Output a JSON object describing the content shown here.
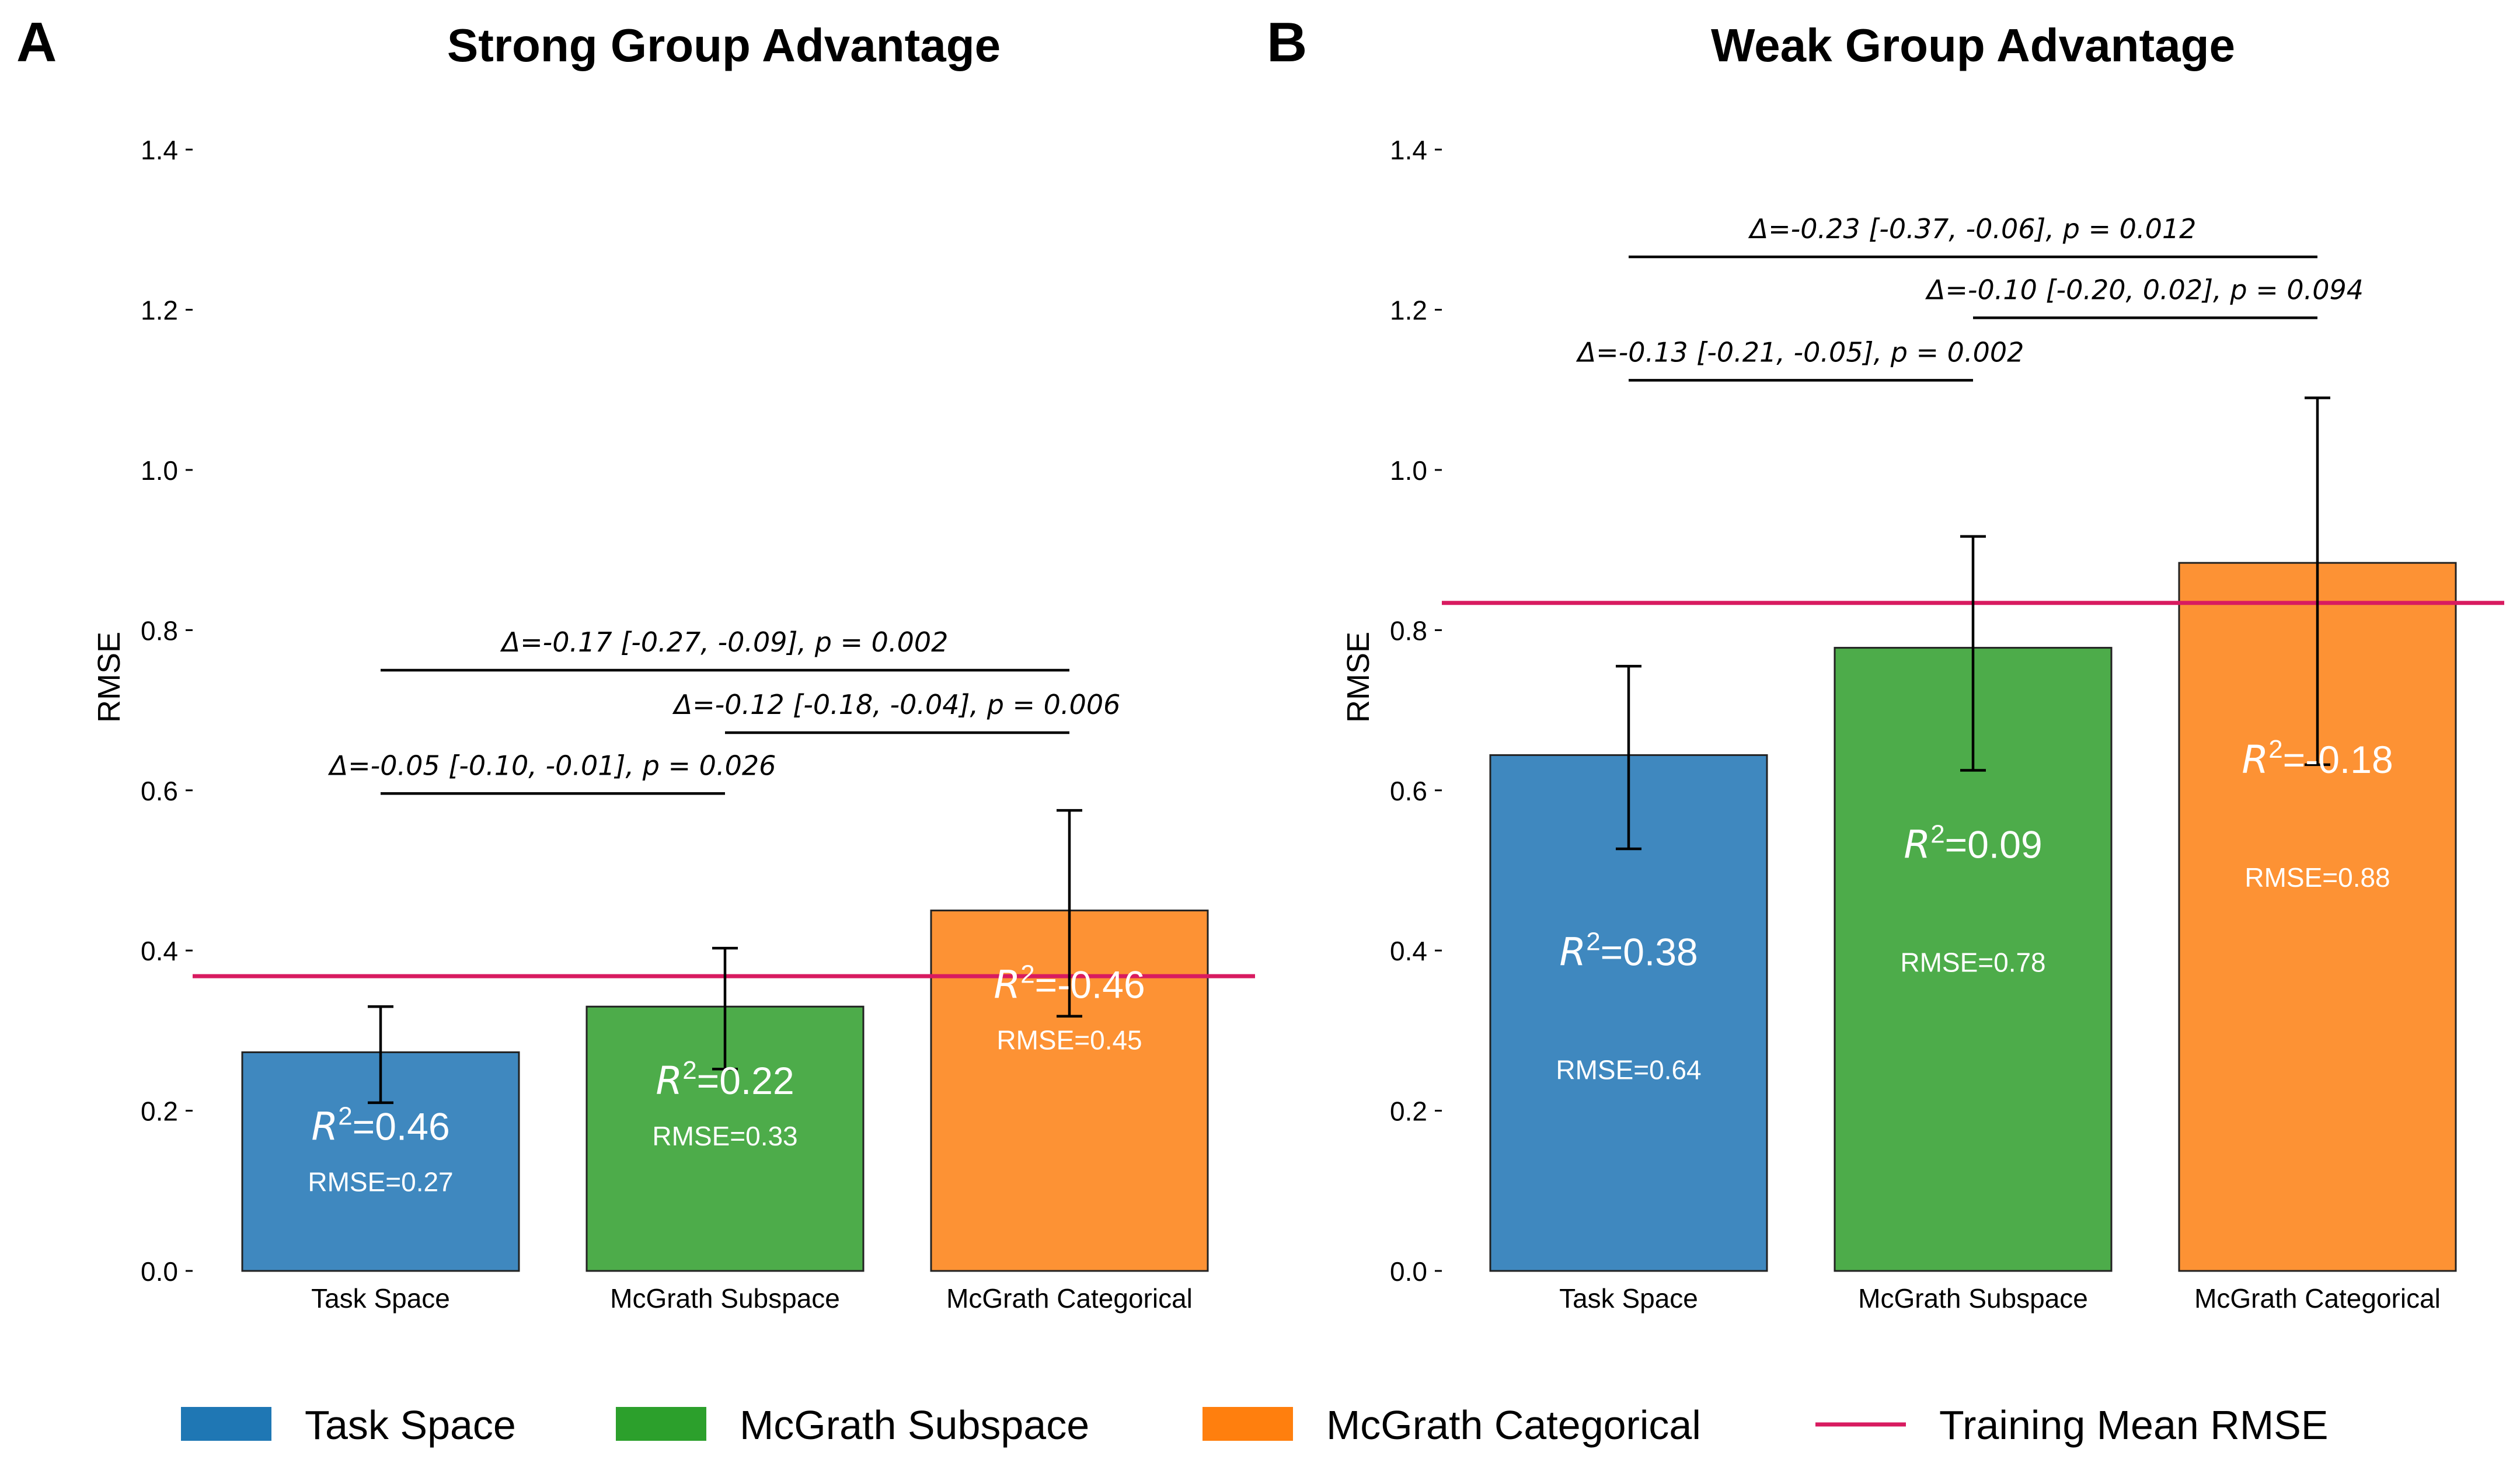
{
  "colors": {
    "task_space": "#3f88bf",
    "mcgrath_subspace": "#4dac4a",
    "mcgrath_categorical": "#fd9234",
    "training_mean": "#d81b60",
    "bar_edge": "#222222",
    "legend_task_space": "#1f77b4",
    "legend_mcgrath_subspace": "#2ca02c",
    "legend_mcgrath_categorical": "#ff7f0e"
  },
  "legend": [
    {
      "label": "Task Space",
      "type": "patch",
      "color_key": "legend_task_space"
    },
    {
      "label": "McGrath Subspace",
      "type": "patch",
      "color_key": "legend_mcgrath_subspace"
    },
    {
      "label": "McGrath Categorical",
      "type": "patch",
      "color_key": "legend_mcgrath_categorical"
    },
    {
      "label": "Training Mean RMSE",
      "type": "line",
      "color_key": "training_mean"
    }
  ],
  "chart_data": [
    {
      "panel": "A",
      "type": "bar",
      "title": "Strong Group Advantage",
      "ylabel": "RMSE",
      "ylim": [
        0,
        1.4
      ],
      "yticks": [
        "0.0",
        "0.2",
        "0.4",
        "0.6",
        "0.8",
        "1.0",
        "1.2",
        "1.4"
      ],
      "categories": [
        "Task Space",
        "McGrath Subspace",
        "McGrath Categorical"
      ],
      "values": [
        0.273,
        0.33,
        0.45
      ],
      "error_low": [
        0.21,
        0.252,
        0.318
      ],
      "error_high": [
        0.33,
        0.403,
        0.575
      ],
      "r2_prefix": [
        "=0.46",
        "=0.22",
        "=-0.46"
      ],
      "rmse_labels": [
        "RMSE=0.27",
        "RMSE=0.33",
        "RMSE=0.45"
      ],
      "training_mean_rmse": 0.368,
      "comparisons": [
        {
          "from": 0,
          "to": 1,
          "y": 0.596,
          "label": "Δ=-0.05 [-0.10, -0.01], p = 0.026"
        },
        {
          "from": 1,
          "to": 2,
          "y": 0.672,
          "label": "Δ=-0.12 [-0.18, -0.04], p = 0.006"
        },
        {
          "from": 0,
          "to": 2,
          "y": 0.75,
          "label": "Δ=-0.17 [-0.27, -0.09], p = 0.002"
        }
      ]
    },
    {
      "panel": "B",
      "type": "bar",
      "title": "Weak Group Advantage",
      "ylabel": "RMSE",
      "ylim": [
        0,
        1.4
      ],
      "yticks": [
        "0.0",
        "0.2",
        "0.4",
        "0.6",
        "0.8",
        "1.0",
        "1.2",
        "1.4"
      ],
      "categories": [
        "Task Space",
        "McGrath Subspace",
        "McGrath Categorical"
      ],
      "values": [
        0.644,
        0.778,
        0.884
      ],
      "error_low": [
        0.527,
        0.625,
        0.632
      ],
      "error_high": [
        0.755,
        0.917,
        1.09
      ],
      "r2_prefix": [
        "=0.38",
        "=0.09",
        "=-0.18"
      ],
      "rmse_labels": [
        "RMSE=0.64",
        "RMSE=0.78",
        "RMSE=0.88"
      ],
      "training_mean_rmse": 0.834,
      "comparisons": [
        {
          "from": 0,
          "to": 1,
          "y": 1.112,
          "label": "Δ=-0.13 [-0.21, -0.05], p = 0.002"
        },
        {
          "from": 1,
          "to": 2,
          "y": 1.19,
          "label": "Δ=-0.10 [-0.20, 0.02], p = 0.094"
        },
        {
          "from": 0,
          "to": 2,
          "y": 1.266,
          "label": "Δ=-0.23 [-0.37, -0.06], p = 0.012"
        }
      ]
    }
  ]
}
